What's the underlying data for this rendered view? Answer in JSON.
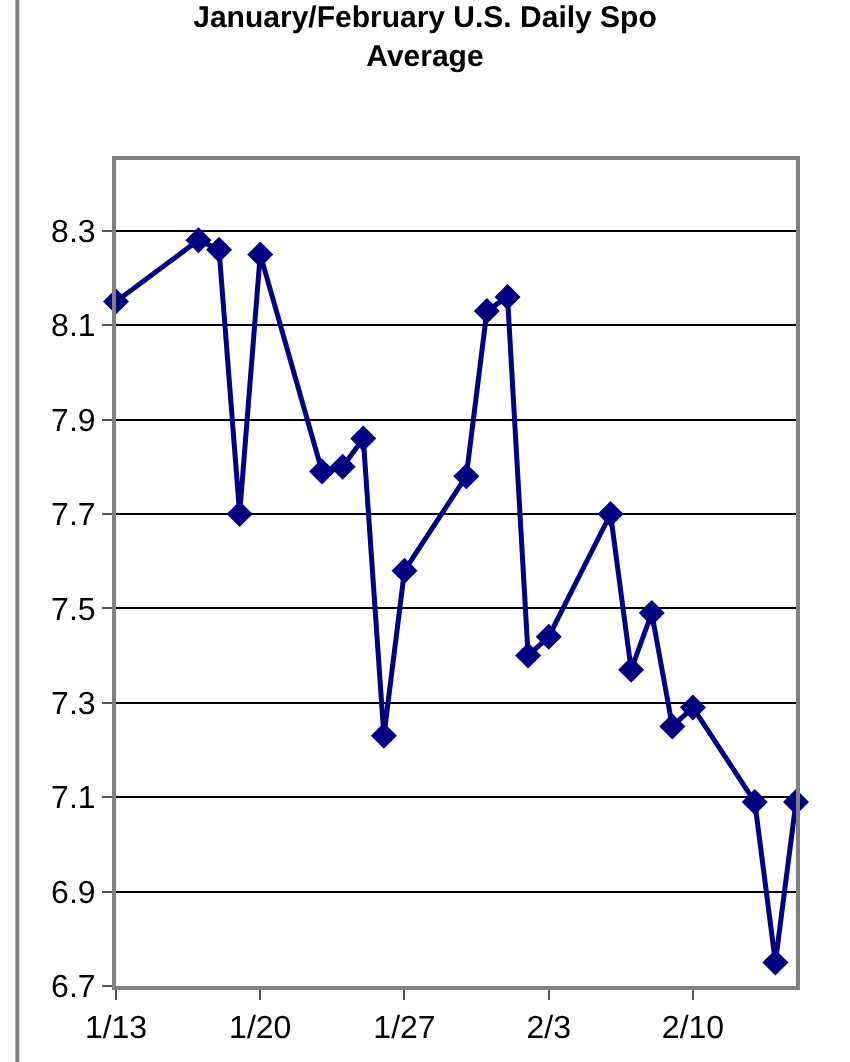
{
  "chart_data": {
    "type": "line",
    "title": "January/February U.S. Daily Spo\nAverage",
    "x": [
      "--01-13",
      "--01-17",
      "--01-18",
      "--01-19",
      "--01-20",
      "--01-23",
      "--01-24",
      "--01-25",
      "--01-26",
      "--01-27",
      "--01-30",
      "--01-31",
      "--02-01",
      "--02-02",
      "--02-03",
      "--02-06",
      "--02-07",
      "--02-08",
      "--02-09",
      "--02-10",
      "--02-13",
      "--02-14",
      "--02-15"
    ],
    "series": [
      {
        "color": "#000080",
        "values": [
          8.15,
          8.28,
          8.26,
          7.7,
          8.25,
          7.79,
          7.8,
          7.86,
          7.23,
          7.58,
          7.78,
          8.13,
          8.16,
          7.4,
          7.44,
          7.7,
          7.37,
          7.49,
          7.25,
          7.29,
          7.09,
          6.75,
          7.09
        ]
      }
    ],
    "xlim": [
      "--01-13",
      "--02-15"
    ],
    "xticks": [
      {
        "value": "--01-13",
        "label": "1/13"
      },
      {
        "value": "--01-20",
        "label": "1/20"
      },
      {
        "value": "--01-27",
        "label": "1/27"
      },
      {
        "value": "--02-03",
        "label": "2/3"
      },
      {
        "value": "--02-10",
        "label": "2/10"
      }
    ],
    "ylim": [
      6.7,
      8.45
    ],
    "yticks": [
      {
        "value": 6.7,
        "label": "6.7"
      },
      {
        "value": 6.9,
        "label": "6.9"
      },
      {
        "value": 7.1,
        "label": "7.1"
      },
      {
        "value": 7.3,
        "label": "7.3"
      },
      {
        "value": 7.5,
        "label": "7.5"
      },
      {
        "value": 7.7,
        "label": "7.7"
      },
      {
        "value": 7.9,
        "label": "7.9"
      },
      {
        "value": 8.1,
        "label": "8.1"
      },
      {
        "value": 8.3,
        "label": "8.3"
      }
    ],
    "grid": "y",
    "marker": "diamond",
    "line_style": "solid"
  }
}
